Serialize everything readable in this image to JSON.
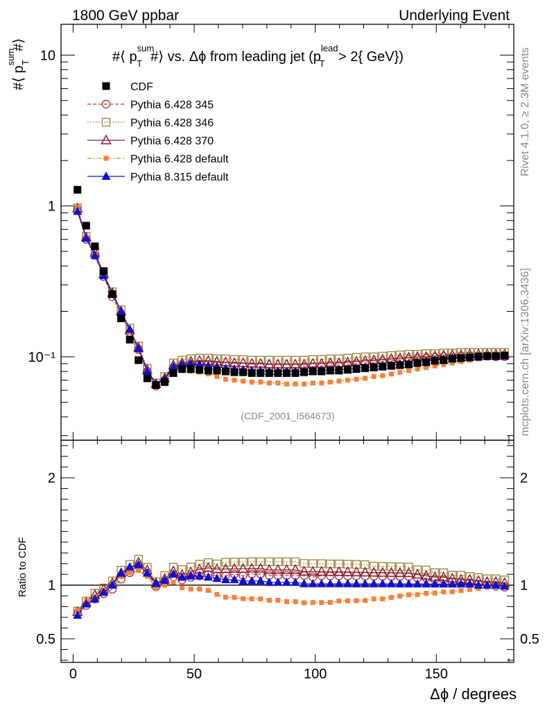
{
  "header": {
    "left": "1800 GeV ppbar",
    "right": "Underlying Event"
  },
  "plot_title": "#⟨ p_T^{sum}#⟩ vs. Δϕ from leading jet  (p_T^{lead} > 2{ GeV})",
  "plot_title_parts": {
    "prefix": "#⟨ p",
    "sup1": "sum",
    "sub1": "T",
    "mid": "#⟩ vs. Δϕ from leading jet  (p",
    "sup2": "lead",
    "sub2": "T",
    "suffix": " > 2{ GeV})"
  },
  "ylabel_main": "#⟨ p_T^{sum}#⟩",
  "ylabel_parts": {
    "prefix": "#⟨ p",
    "sup": "sum",
    "sub": "T",
    "suffix": "#⟩"
  },
  "ylabel_ratio": "Ratio to CDF",
  "xlabel": "Δϕ / degrees",
  "analysis_id": "(CDF_2001_I564673)",
  "side_text_top": "Rivet 4.1.0, ≥ 2.3M events",
  "side_text_bottom": "mcplots.cern.ch [arXiv:1306.3436]",
  "colors": {
    "cdf": "#000000",
    "py345": "#b03a48",
    "py346": "#a08a4a",
    "py370": "#8b1a2a",
    "py6def": "#f5813a",
    "py8def": "#1010d0"
  },
  "chart_data": {
    "type": "scatter",
    "main_yscale": "log",
    "main_ylim": [
      0.028,
      16
    ],
    "main_yticks": [
      {
        "value": 0.1,
        "label": "10⁻¹"
      },
      {
        "value": 1,
        "label": "1"
      },
      {
        "value": 10,
        "label": "10"
      }
    ],
    "ratio_ylim": [
      0.28,
      2.35
    ],
    "ratio_yticks": [
      {
        "value": 0.5,
        "label": "0.5"
      },
      {
        "value": 1,
        "label": "1"
      },
      {
        "value": 2,
        "label": "2"
      }
    ],
    "xlim": [
      -5,
      182
    ],
    "xticks": [
      0,
      50,
      100,
      150
    ],
    "x": [
      1.8,
      5.4,
      9.0,
      12.6,
      16.2,
      19.8,
      23.4,
      27.0,
      30.6,
      34.2,
      37.8,
      41.4,
      45.0,
      48.6,
      52.2,
      55.8,
      59.4,
      63.0,
      66.6,
      70.2,
      73.8,
      77.4,
      81.0,
      84.6,
      88.2,
      91.8,
      95.4,
      99.0,
      102.6,
      106.2,
      109.8,
      113.4,
      117.0,
      120.6,
      124.2,
      127.8,
      131.4,
      135.0,
      138.6,
      142.2,
      145.8,
      149.4,
      153.0,
      156.6,
      160.2,
      163.8,
      167.4,
      171.0,
      174.6,
      178.2
    ],
    "series": [
      {
        "name": "CDF",
        "key": "cdf",
        "marker": "filled-square",
        "line": "none",
        "values": [
          1.28,
          0.74,
          0.54,
          0.37,
          0.26,
          0.18,
          0.13,
          0.095,
          0.072,
          0.065,
          0.068,
          0.078,
          0.083,
          0.083,
          0.082,
          0.081,
          0.081,
          0.08,
          0.079,
          0.079,
          0.078,
          0.078,
          0.078,
          0.078,
          0.078,
          0.078,
          0.079,
          0.08,
          0.08,
          0.081,
          0.081,
          0.082,
          0.083,
          0.084,
          0.085,
          0.086,
          0.087,
          0.088,
          0.089,
          0.091,
          0.092,
          0.094,
          0.095,
          0.097,
          0.098,
          0.099,
          0.1,
          0.101,
          0.101,
          0.102
        ]
      },
      {
        "name": "Pythia 6.428 345",
        "key": "py345",
        "marker": "open-circle",
        "line": "dashed",
        "values": [
          0.95,
          0.6,
          0.47,
          0.34,
          0.25,
          0.19,
          0.145,
          0.112,
          0.08,
          0.064,
          0.07,
          0.084,
          0.087,
          0.089,
          0.089,
          0.089,
          0.088,
          0.087,
          0.087,
          0.086,
          0.086,
          0.086,
          0.085,
          0.085,
          0.085,
          0.085,
          0.086,
          0.086,
          0.087,
          0.088,
          0.088,
          0.089,
          0.09,
          0.091,
          0.092,
          0.093,
          0.094,
          0.095,
          0.096,
          0.097,
          0.098,
          0.099,
          0.1,
          0.1,
          0.101,
          0.101,
          0.101,
          0.101,
          0.1,
          0.1
        ]
      },
      {
        "name": "Pythia 6.428 346",
        "key": "py346",
        "marker": "open-square",
        "line": "dotted",
        "values": [
          0.97,
          0.63,
          0.5,
          0.36,
          0.27,
          0.205,
          0.155,
          0.118,
          0.084,
          0.067,
          0.074,
          0.091,
          0.095,
          0.097,
          0.098,
          0.098,
          0.097,
          0.097,
          0.096,
          0.096,
          0.095,
          0.095,
          0.095,
          0.095,
          0.095,
          0.095,
          0.095,
          0.096,
          0.096,
          0.097,
          0.097,
          0.098,
          0.099,
          0.1,
          0.1,
          0.101,
          0.102,
          0.103,
          0.104,
          0.104,
          0.105,
          0.105,
          0.106,
          0.106,
          0.107,
          0.107,
          0.107,
          0.107,
          0.107,
          0.107
        ]
      },
      {
        "name": "Pythia 6.428 370",
        "key": "py370",
        "marker": "open-triangle",
        "line": "solid",
        "values": [
          0.96,
          0.62,
          0.49,
          0.355,
          0.265,
          0.2,
          0.15,
          0.115,
          0.082,
          0.066,
          0.072,
          0.088,
          0.091,
          0.093,
          0.094,
          0.094,
          0.093,
          0.092,
          0.091,
          0.091,
          0.09,
          0.09,
          0.089,
          0.089,
          0.089,
          0.089,
          0.089,
          0.09,
          0.09,
          0.091,
          0.091,
          0.092,
          0.093,
          0.094,
          0.095,
          0.096,
          0.097,
          0.098,
          0.099,
          0.1,
          0.1,
          0.101,
          0.102,
          0.103,
          0.103,
          0.104,
          0.104,
          0.104,
          0.104,
          0.104
        ]
      },
      {
        "name": "Pythia 6.428 default",
        "key": "py6def",
        "marker": "small-filled-square",
        "line": "dashdot",
        "values": [
          0.98,
          0.63,
          0.48,
          0.35,
          0.26,
          0.195,
          0.145,
          0.108,
          0.078,
          0.063,
          0.068,
          0.08,
          0.081,
          0.08,
          0.079,
          0.077,
          0.074,
          0.071,
          0.07,
          0.069,
          0.068,
          0.068,
          0.067,
          0.067,
          0.066,
          0.066,
          0.066,
          0.067,
          0.067,
          0.068,
          0.069,
          0.07,
          0.071,
          0.072,
          0.074,
          0.075,
          0.077,
          0.079,
          0.081,
          0.083,
          0.085,
          0.087,
          0.089,
          0.091,
          0.093,
          0.095,
          0.097,
          0.099,
          0.1,
          0.101
        ]
      },
      {
        "name": "Pythia 8.315 default",
        "key": "py8def",
        "marker": "filled-triangle",
        "line": "solid",
        "values": [
          0.92,
          0.61,
          0.47,
          0.345,
          0.26,
          0.2,
          0.152,
          0.113,
          0.08,
          0.066,
          0.071,
          0.086,
          0.089,
          0.09,
          0.089,
          0.087,
          0.086,
          0.084,
          0.083,
          0.082,
          0.081,
          0.081,
          0.08,
          0.08,
          0.08,
          0.08,
          0.08,
          0.081,
          0.081,
          0.082,
          0.082,
          0.083,
          0.084,
          0.085,
          0.086,
          0.087,
          0.088,
          0.089,
          0.09,
          0.092,
          0.093,
          0.095,
          0.096,
          0.098,
          0.099,
          0.1,
          0.1,
          0.101,
          0.101,
          0.101
        ]
      }
    ],
    "legend_position": "top-left"
  }
}
